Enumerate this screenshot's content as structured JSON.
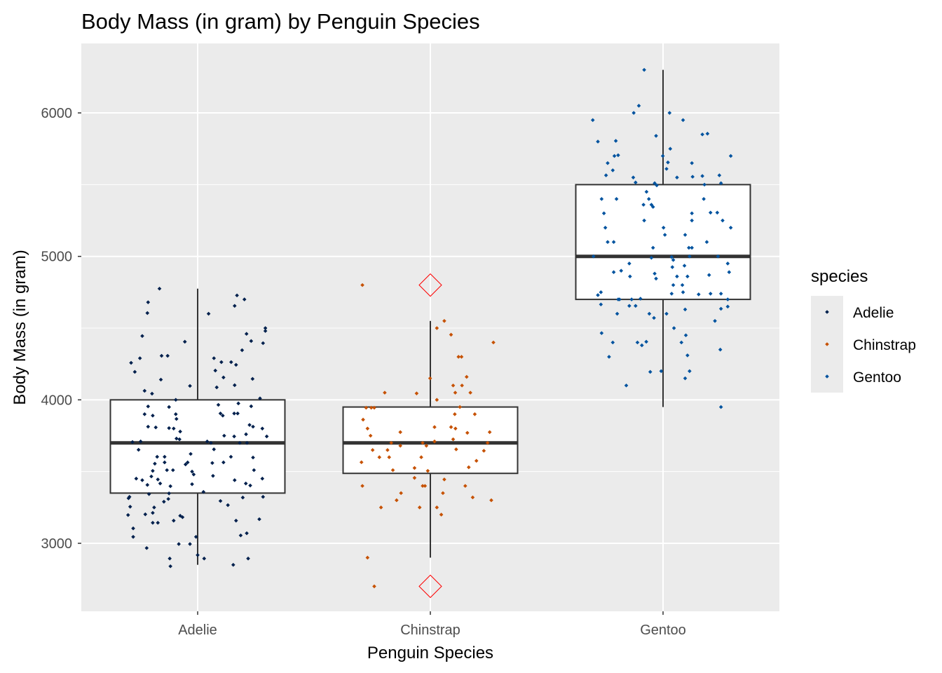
{
  "chart_data": {
    "type": "boxplot",
    "title": "Body Mass (in gram) by Penguin Species",
    "xlabel": "Penguin Species",
    "ylabel": "Body Mass (in gram)",
    "categories": [
      "Adelie",
      "Chinstrap",
      "Gentoo"
    ],
    "ylim": [
      2526,
      6484
    ],
    "yticks": [
      3000,
      4000,
      5000,
      6000
    ],
    "ytick_labels": [
      "3000",
      "4000",
      "5000",
      "6000"
    ],
    "minor_yticks": [
      3500,
      4500,
      5500
    ],
    "grid": true,
    "legend": {
      "title": "species",
      "position": "right",
      "entries": [
        "Adelie",
        "Chinstrap",
        "Gentoo"
      ]
    },
    "colors": {
      "Adelie": "#00204D",
      "Chinstrap": "#C65100",
      "Gentoo": "#00539F",
      "outlier": "#FF0000",
      "panel": "#EBEBEB"
    },
    "boxes": [
      {
        "category": "Adelie",
        "min": 2850,
        "q1": 3350,
        "median": 3700,
        "q3": 4000,
        "max": 4775,
        "outliers": []
      },
      {
        "category": "Chinstrap",
        "min": 2900,
        "q1": 3487.5,
        "median": 3700,
        "q3": 3950,
        "max": 4550,
        "outliers": [
          4800,
          2700
        ]
      },
      {
        "category": "Gentoo",
        "min": 3950,
        "q1": 4700,
        "median": 5000,
        "q3": 5500,
        "max": 6300,
        "outliers": []
      }
    ],
    "jitter_points_note_format": "[x offset from category center in category units, body mass]",
    "points": {
      "Adelie": [
        [
          -0.164,
          4775
        ],
        [
          -0.213,
          4680
        ],
        [
          -0.216,
          4605
        ],
        [
          0.169,
          4728
        ],
        [
          0.201,
          4700
        ],
        [
          0.159,
          4655
        ],
        [
          0.047,
          4600
        ],
        [
          0.291,
          4500
        ],
        [
          0.291,
          4480
        ],
        [
          -0.238,
          4445
        ],
        [
          -0.055,
          4405
        ],
        [
          0.21,
          4460
        ],
        [
          0.23,
          4410
        ],
        [
          0.281,
          4395
        ],
        [
          0.191,
          4346
        ],
        [
          -0.248,
          4290
        ],
        [
          -0.155,
          4307
        ],
        [
          -0.129,
          4307
        ],
        [
          -0.286,
          4258
        ],
        [
          -0.27,
          4195
        ],
        [
          -0.158,
          4141
        ],
        [
          -0.033,
          4097
        ],
        [
          -0.228,
          4063
        ],
        [
          -0.196,
          4043
        ],
        [
          0.07,
          4290
        ],
        [
          0.102,
          4263
        ],
        [
          0.144,
          4263
        ],
        [
          0.165,
          4244
        ],
        [
          0.076,
          4204
        ],
        [
          0.111,
          4156
        ],
        [
          0.236,
          4146
        ],
        [
          0.159,
          4102
        ],
        [
          0.082,
          4087
        ],
        [
          -0.094,
          4000
        ],
        [
          0.268,
          4010
        ],
        [
          -0.213,
          3954
        ],
        [
          -0.123,
          3950
        ],
        [
          0.089,
          3965
        ],
        [
          0.175,
          3975
        ],
        [
          0.23,
          3955
        ],
        [
          -0.228,
          3900
        ],
        [
          -0.193,
          3890
        ],
        [
          -0.094,
          3900
        ],
        [
          -0.091,
          3867
        ],
        [
          0.098,
          3905
        ],
        [
          0.108,
          3890
        ],
        [
          0.157,
          3905
        ],
        [
          0.172,
          3905
        ],
        [
          -0.213,
          3813
        ],
        [
          -0.18,
          3808
        ],
        [
          -0.123,
          3803
        ],
        [
          -0.103,
          3800
        ],
        [
          -0.075,
          3779
        ],
        [
          0.223,
          3825
        ],
        [
          0.238,
          3813
        ],
        [
          0.278,
          3800
        ],
        [
          -0.091,
          3730
        ],
        [
          -0.078,
          3725
        ],
        [
          0.114,
          3750
        ],
        [
          0.157,
          3745
        ],
        [
          0.208,
          3760
        ],
        [
          0.297,
          3745
        ],
        [
          -0.28,
          3706
        ],
        [
          -0.245,
          3710
        ],
        [
          0.041,
          3710
        ],
        [
          0.057,
          3700
        ],
        [
          0.181,
          3700
        ],
        [
          0.212,
          3700
        ],
        [
          -0.254,
          3652
        ],
        [
          -0.174,
          3603
        ],
        [
          -0.142,
          3603
        ],
        [
          -0.142,
          3564
        ],
        [
          -0.184,
          3555
        ],
        [
          -0.03,
          3623
        ],
        [
          -0.052,
          3550
        ],
        [
          -0.043,
          3564
        ],
        [
          0.07,
          3655
        ],
        [
          0.063,
          3560
        ],
        [
          0.111,
          3564
        ],
        [
          0.143,
          3603
        ],
        [
          0.238,
          3598
        ],
        [
          -0.193,
          3505
        ],
        [
          -0.132,
          3510
        ],
        [
          -0.106,
          3510
        ],
        [
          -0.199,
          3466
        ],
        [
          -0.024,
          3500
        ],
        [
          -0.017,
          3480
        ],
        [
          0.066,
          3470
        ],
        [
          0.242,
          3510
        ],
        [
          -0.264,
          3451
        ],
        [
          -0.238,
          3440
        ],
        [
          -0.171,
          3445
        ],
        [
          -0.161,
          3417
        ],
        [
          -0.216,
          3407
        ],
        [
          -0.117,
          3398
        ],
        [
          -0.024,
          3412
        ],
        [
          0.159,
          3440
        ],
        [
          0.207,
          3417
        ],
        [
          0.226,
          3403
        ],
        [
          0.278,
          3451
        ],
        [
          -0.297,
          3314
        ],
        [
          -0.293,
          3324
        ],
        [
          -0.209,
          3343
        ],
        [
          -0.123,
          3348
        ],
        [
          0.025,
          3358
        ],
        [
          -0.126,
          3309
        ],
        [
          -0.145,
          3290
        ],
        [
          0.098,
          3295
        ],
        [
          0.13,
          3266
        ],
        [
          0.194,
          3319
        ],
        [
          0.281,
          3324
        ],
        [
          -0.29,
          3255
        ],
        [
          -0.187,
          3250
        ],
        [
          -0.299,
          3197
        ],
        [
          -0.225,
          3202
        ],
        [
          -0.193,
          3212
        ],
        [
          -0.103,
          3158
        ],
        [
          -0.075,
          3192
        ],
        [
          -0.065,
          3182
        ],
        [
          -0.193,
          3143
        ],
        [
          -0.171,
          3143
        ],
        [
          0.165,
          3158
        ],
        [
          0.265,
          3168
        ],
        [
          -0.277,
          3104
        ],
        [
          -0.277,
          3045
        ],
        [
          0.185,
          3055
        ],
        [
          0.211,
          3070
        ],
        [
          -0.007,
          3045
        ],
        [
          -0.219,
          2967
        ],
        [
          -0.081,
          2995
        ],
        [
          -0.033,
          2995
        ],
        [
          0.0,
          2918
        ],
        [
          -0.12,
          2894
        ],
        [
          0.028,
          2894
        ],
        [
          0.217,
          2894
        ],
        [
          -0.117,
          2840
        ],
        [
          0.153,
          2850
        ]
      ],
      "Chinstrap": [
        [
          -0.292,
          4800
        ],
        [
          0.06,
          4550
        ],
        [
          0.028,
          4500
        ],
        [
          0.089,
          4454
        ],
        [
          0.271,
          4400
        ],
        [
          0.121,
          4300
        ],
        [
          0.134,
          4300
        ],
        [
          -0.001,
          4150
        ],
        [
          0.156,
          4160
        ],
        [
          0.098,
          4100
        ],
        [
          0.136,
          4100
        ],
        [
          0.107,
          4050
        ],
        [
          0.172,
          4050
        ],
        [
          -0.196,
          4050
        ],
        [
          -0.059,
          4045
        ],
        [
          0.028,
          4000
        ],
        [
          0.127,
          3950
        ],
        [
          -0.276,
          3945
        ],
        [
          -0.254,
          3945
        ],
        [
          -0.241,
          3945
        ],
        [
          0.105,
          3900
        ],
        [
          0.191,
          3900
        ],
        [
          -0.289,
          3862
        ],
        [
          -0.27,
          3800
        ],
        [
          -0.257,
          3750
        ],
        [
          -0.129,
          3775
        ],
        [
          0.018,
          3810
        ],
        [
          0.089,
          3810
        ],
        [
          0.108,
          3800
        ],
        [
          0.159,
          3770
        ],
        [
          0.255,
          3775
        ],
        [
          -0.168,
          3700
        ],
        [
          -0.033,
          3700
        ],
        [
          -0.017,
          3680
        ],
        [
          0.018,
          3710
        ],
        [
          0.098,
          3725
        ],
        [
          0.246,
          3700
        ],
        [
          -0.129,
          3680
        ],
        [
          -0.248,
          3650
        ],
        [
          -0.184,
          3650
        ],
        [
          -0.219,
          3600
        ],
        [
          -0.177,
          3600
        ],
        [
          -0.039,
          3600
        ],
        [
          0.111,
          3655
        ],
        [
          0.23,
          3645
        ],
        [
          0.198,
          3575
        ],
        [
          -0.296,
          3565
        ],
        [
          0.165,
          3530
        ],
        [
          -0.068,
          3525
        ],
        [
          -0.161,
          3510
        ],
        [
          -0.011,
          3505
        ],
        [
          -0.068,
          3456
        ],
        [
          0.06,
          3445
        ],
        [
          -0.292,
          3400
        ],
        [
          -0.033,
          3400
        ],
        [
          -0.023,
          3400
        ],
        [
          0.15,
          3400
        ],
        [
          -0.126,
          3350
        ],
        [
          0.054,
          3350
        ],
        [
          0.182,
          3320
        ],
        [
          -0.145,
          3300
        ],
        [
          0.262,
          3300
        ],
        [
          -0.212,
          3250
        ],
        [
          -0.046,
          3250
        ],
        [
          0.028,
          3250
        ],
        [
          0.047,
          3200
        ],
        [
          -0.27,
          2900
        ],
        [
          -0.241,
          2700
        ]
      ],
      "Gentoo": [
        [
          -0.081,
          6300
        ],
        [
          -0.104,
          6050
        ],
        [
          -0.126,
          6000
        ],
        [
          0.028,
          6000
        ],
        [
          -0.302,
          5950
        ],
        [
          0.086,
          5950
        ],
        [
          0.169,
          5850
        ],
        [
          0.191,
          5855
        ],
        [
          -0.03,
          5840
        ],
        [
          -0.28,
          5800
        ],
        [
          -0.203,
          5805
        ],
        [
          0.031,
          5750
        ],
        [
          -0.209,
          5700
        ],
        [
          -0.193,
          5705
        ],
        [
          -0.001,
          5700
        ],
        [
          0.291,
          5700
        ],
        [
          -0.238,
          5650
        ],
        [
          0.021,
          5655
        ],
        [
          0.124,
          5650
        ],
        [
          -0.216,
          5600
        ],
        [
          0.015,
          5610
        ],
        [
          -0.245,
          5565
        ],
        [
          -0.128,
          5550
        ],
        [
          -0.118,
          5515
        ],
        [
          0.06,
          5550
        ],
        [
          0.127,
          5555
        ],
        [
          0.169,
          5560
        ],
        [
          0.242,
          5565
        ],
        [
          0.249,
          5510
        ],
        [
          -0.036,
          5510
        ],
        [
          -0.027,
          5495
        ],
        [
          0.178,
          5500
        ],
        [
          -0.071,
          5450
        ],
        [
          -0.264,
          5400
        ],
        [
          -0.2,
          5400
        ],
        [
          -0.061,
          5400
        ],
        [
          0.175,
          5400
        ],
        [
          -0.084,
          5360
        ],
        [
          -0.05,
          5360
        ],
        [
          -0.043,
          5345
        ],
        [
          -0.254,
          5300
        ],
        [
          0.124,
          5300
        ],
        [
          0.204,
          5305
        ],
        [
          0.233,
          5305
        ],
        [
          -0.081,
          5250
        ],
        [
          0.124,
          5250
        ],
        [
          0.256,
          5250
        ],
        [
          -0.248,
          5200
        ],
        [
          0.002,
          5200
        ],
        [
          0.291,
          5200
        ],
        [
          0.008,
          5150
        ],
        [
          0.095,
          5150
        ],
        [
          -0.238,
          5100
        ],
        [
          -0.212,
          5100
        ],
        [
          0.188,
          5100
        ],
        [
          -0.043,
          5060
        ],
        [
          0.111,
          5060
        ],
        [
          0.124,
          5060
        ],
        [
          -0.299,
          5000
        ],
        [
          -0.05,
          4990
        ],
        [
          0.037,
          4995
        ],
        [
          0.114,
          5000
        ],
        [
          0.236,
          5000
        ],
        [
          0.044,
          4975
        ],
        [
          -0.145,
          4950
        ],
        [
          0.04,
          4925
        ],
        [
          0.092,
          4935
        ],
        [
          0.278,
          4950
        ],
        [
          -0.18,
          4900
        ],
        [
          -0.212,
          4890
        ],
        [
          0.284,
          4890
        ],
        [
          -0.036,
          4880
        ],
        [
          -0.142,
          4860
        ],
        [
          -0.03,
          4845
        ],
        [
          0.06,
          4860
        ],
        [
          0.105,
          4860
        ],
        [
          0.198,
          4870
        ],
        [
          0.044,
          4800
        ],
        [
          0.083,
          4800
        ],
        [
          -0.267,
          4750
        ],
        [
          -0.28,
          4730
        ],
        [
          0.037,
          4740
        ],
        [
          0.086,
          4750
        ],
        [
          0.153,
          4735
        ],
        [
          0.204,
          4740
        ],
        [
          0.249,
          4740
        ],
        [
          0.278,
          4700
        ],
        [
          -0.193,
          4700
        ],
        [
          -0.187,
          4700
        ],
        [
          -0.135,
          4700
        ],
        [
          -0.097,
          4705
        ],
        [
          -0.267,
          4665
        ],
        [
          -0.145,
          4655
        ],
        [
          -0.118,
          4655
        ],
        [
          0.095,
          4630
        ],
        [
          0.249,
          4635
        ],
        [
          0.278,
          4650
        ],
        [
          -0.197,
          4600
        ],
        [
          -0.059,
          4600
        ],
        [
          -0.039,
          4571
        ],
        [
          0.015,
          4600
        ],
        [
          0.223,
          4550
        ],
        [
          0.047,
          4500
        ],
        [
          -0.264,
          4465
        ],
        [
          0.098,
          4450
        ],
        [
          -0.216,
          4400
        ],
        [
          -0.11,
          4400
        ],
        [
          -0.072,
          4405
        ],
        [
          -0.091,
          4380
        ],
        [
          0.079,
          4400
        ],
        [
          0.246,
          4350
        ],
        [
          -0.232,
          4300
        ],
        [
          0.105,
          4310
        ],
        [
          0.114,
          4200
        ],
        [
          -0.055,
          4195
        ],
        [
          -0.008,
          4200
        ],
        [
          0.095,
          4150
        ],
        [
          -0.158,
          4100
        ],
        [
          0.249,
          3950
        ]
      ]
    }
  }
}
